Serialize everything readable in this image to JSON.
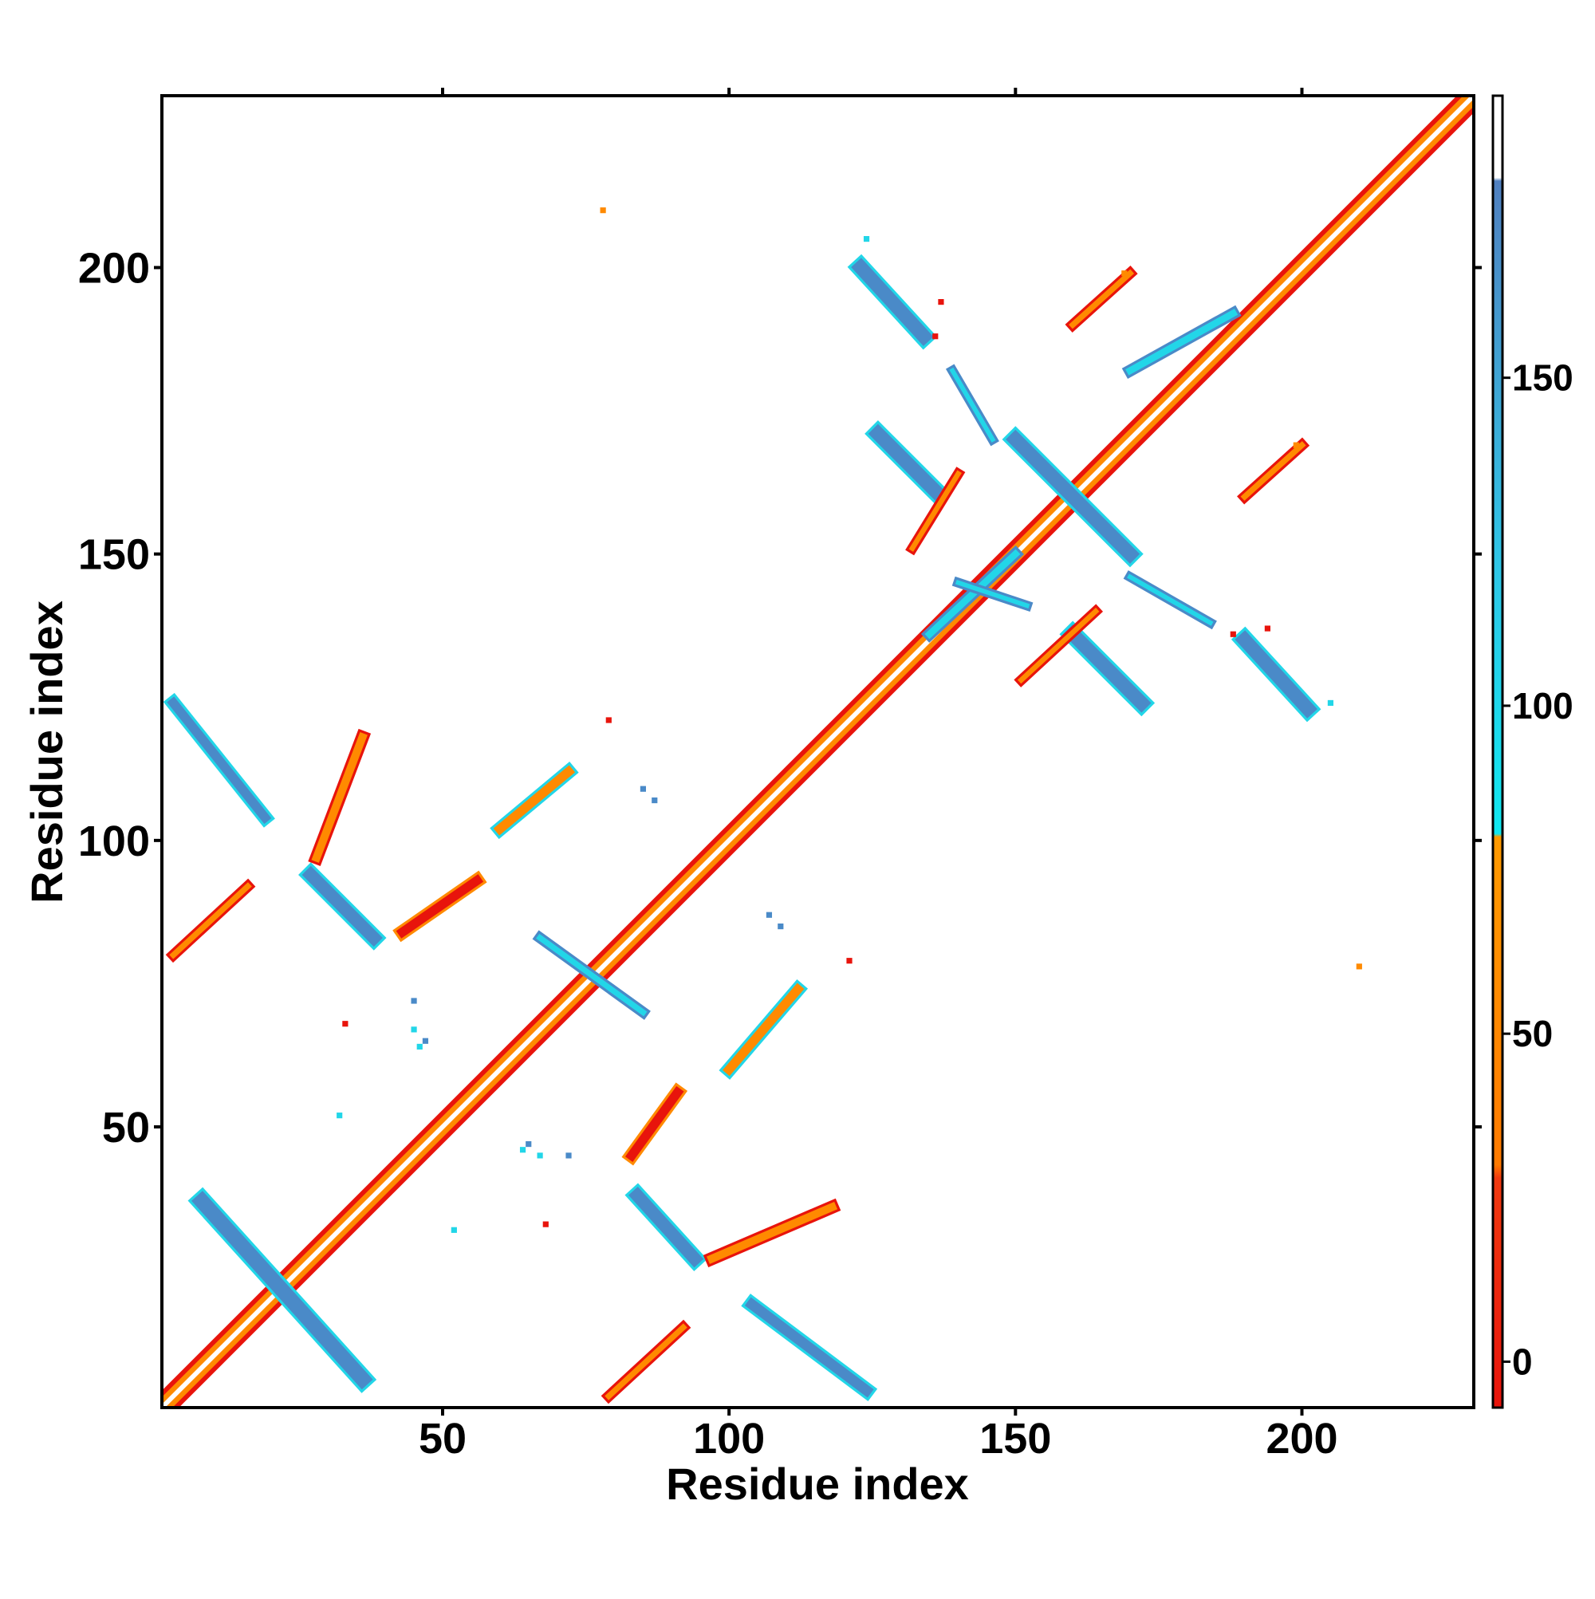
{
  "chart_data": {
    "type": "heatmap",
    "title": "",
    "xlabel": "Residue index",
    "ylabel": "Residue index",
    "xlim": [
      1,
      230
    ],
    "ylim": [
      1,
      230
    ],
    "x_ticks": [
      50,
      100,
      150,
      200
    ],
    "y_ticks": [
      50,
      100,
      150,
      200
    ],
    "colorbar": {
      "ticks": [
        0,
        50,
        100,
        150
      ],
      "range": [
        -7,
        193
      ],
      "bands": [
        {
          "from": -7,
          "to": 30,
          "color": "#e8140c"
        },
        {
          "from": 30,
          "to": 80,
          "color": "#ff8a00"
        },
        {
          "from": 80,
          "to": 180,
          "color": "#22d6e8"
        },
        {
          "from": 180,
          "to": 193,
          "color": "#ffffff"
        }
      ],
      "gradient_stops": [
        {
          "value": -7,
          "color": "#e8140c"
        },
        {
          "value": 28,
          "color": "#f03a10"
        },
        {
          "value": 30,
          "color": "#ff7a00"
        },
        {
          "value": 80,
          "color": "#ff9a00"
        },
        {
          "value": 80.5,
          "color": "#10e8f0"
        },
        {
          "value": 120,
          "color": "#2ec8e8"
        },
        {
          "value": 180,
          "color": "#5080c0"
        },
        {
          "value": 180.5,
          "color": "#ffffff"
        }
      ]
    },
    "diagonal": {
      "from": 1,
      "to": 230
    },
    "segments": [
      {
        "x1": 8,
        "y1": 37,
        "x2": 36,
        "y2": 6,
        "width": 2.6,
        "color": "#4a8ac8",
        "edge": "#22d6e8"
      },
      {
        "x1": 3,
        "y1": 124,
        "x2": 19,
        "y2": 104,
        "width": 1.6,
        "color": "#4a8ac8",
        "edge": "#22d6e8"
      },
      {
        "x1": 27,
        "y1": 94,
        "x2": 38,
        "y2": 83,
        "width": 2.2,
        "color": "#4a8ac8",
        "edge": "#22d6e8"
      },
      {
        "x1": 84,
        "y1": 38,
        "x2": 94,
        "y2": 27,
        "width": 2.2,
        "color": "#4a8ac8",
        "edge": "#22d6e8"
      },
      {
        "x1": 104,
        "y1": 19,
        "x2": 124,
        "y2": 4,
        "width": 1.8,
        "color": "#4a8ac8",
        "edge": "#22d6e8"
      },
      {
        "x1": 123,
        "y1": 200,
        "x2": 134,
        "y2": 188,
        "width": 2.4,
        "color": "#4a8ac8",
        "edge": "#22d6e8"
      },
      {
        "x1": 126,
        "y1": 171,
        "x2": 136,
        "y2": 161,
        "width": 2.4,
        "color": "#4a8ac8",
        "edge": "#22d6e8"
      },
      {
        "x1": 150,
        "y1": 170,
        "x2": 170,
        "y2": 150,
        "width": 2.4,
        "color": "#4a8ac8",
        "edge": "#22d6e8"
      },
      {
        "x1": 160,
        "y1": 136,
        "x2": 172,
        "y2": 124,
        "width": 2.4,
        "color": "#4a8ac8",
        "edge": "#22d6e8"
      },
      {
        "x1": 190,
        "y1": 135,
        "x2": 201,
        "y2": 123,
        "width": 2.4,
        "color": "#4a8ac8",
        "edge": "#22d6e8"
      },
      {
        "x1": 28,
        "y1": 97,
        "x2": 36,
        "y2": 118,
        "width": 1.4,
        "color": "#ff8a00",
        "edge": "#e8140c"
      },
      {
        "x1": 43,
        "y1": 84,
        "x2": 56,
        "y2": 93,
        "width": 1.6,
        "color": "#e8140c",
        "edge": "#ff8a00"
      },
      {
        "x1": 83,
        "y1": 45,
        "x2": 91,
        "y2": 56,
        "width": 1.6,
        "color": "#e8140c",
        "edge": "#ff8a00"
      },
      {
        "x1": 97,
        "y1": 27,
        "x2": 118,
        "y2": 36,
        "width": 1.4,
        "color": "#ff8a00",
        "edge": "#e8140c"
      },
      {
        "x1": 60,
        "y1": 102,
        "x2": 72,
        "y2": 112,
        "width": 1.6,
        "color": "#ff8a00",
        "edge": "#22d6e8"
      },
      {
        "x1": 100,
        "y1": 60,
        "x2": 112,
        "y2": 74,
        "width": 1.6,
        "color": "#ff8a00",
        "edge": "#22d6e8"
      },
      {
        "x1": 3,
        "y1": 80,
        "x2": 16,
        "y2": 92,
        "width": 1.0,
        "color": "#ff8a00",
        "edge": "#e8140c"
      },
      {
        "x1": 79,
        "y1": 3,
        "x2": 92,
        "y2": 15,
        "width": 1.0,
        "color": "#ff8a00",
        "edge": "#e8140c"
      },
      {
        "x1": 160,
        "y1": 190,
        "x2": 170,
        "y2": 199,
        "width": 1.0,
        "color": "#ff8a00",
        "edge": "#e8140c"
      },
      {
        "x1": 190,
        "y1": 160,
        "x2": 200,
        "y2": 169,
        "width": 1.0,
        "color": "#ff8a00",
        "edge": "#e8140c"
      },
      {
        "x1": 132,
        "y1": 151,
        "x2": 140,
        "y2": 164,
        "width": 0.9,
        "color": "#ff8a00",
        "edge": "#e8140c"
      },
      {
        "x1": 151,
        "y1": 128,
        "x2": 164,
        "y2": 140,
        "width": 0.9,
        "color": "#ff8a00",
        "edge": "#e8140c"
      },
      {
        "x1": 139,
        "y1": 182,
        "x2": 146,
        "y2": 170,
        "width": 0.8,
        "color": "#22d6e8",
        "edge": "#4a8ac8"
      },
      {
        "x1": 170,
        "y1": 146,
        "x2": 184,
        "y2": 138,
        "width": 0.8,
        "color": "#22d6e8",
        "edge": "#4a8ac8"
      },
      {
        "x1": 170,
        "y1": 182,
        "x2": 188,
        "y2": 192,
        "width": 1.2,
        "color": "#22d6e8",
        "edge": "#4a8ac8"
      },
      {
        "x1": 135,
        "y1": 136,
        "x2": 150,
        "y2": 150,
        "width": 1.2,
        "color": "#22d6e8",
        "edge": "#4a8ac8"
      },
      {
        "x1": 67,
        "y1": 83,
        "x2": 85,
        "y2": 70,
        "width": 1.0,
        "color": "#22d6e8",
        "edge": "#4a8ac8"
      },
      {
        "x1": 140,
        "y1": 145,
        "x2": 152,
        "y2": 141,
        "width": 0.8,
        "color": "#22d6e8",
        "edge": "#4a8ac8"
      }
    ],
    "points": [
      {
        "x": 78,
        "y": 210,
        "color": "#ff8a00"
      },
      {
        "x": 210,
        "y": 78,
        "color": "#ff8a00"
      },
      {
        "x": 79,
        "y": 121,
        "color": "#e8140c"
      },
      {
        "x": 121,
        "y": 79,
        "color": "#e8140c"
      },
      {
        "x": 33,
        "y": 68,
        "color": "#e8140c"
      },
      {
        "x": 68,
        "y": 33,
        "color": "#e8140c"
      },
      {
        "x": 124,
        "y": 205,
        "color": "#22d6e8"
      },
      {
        "x": 205,
        "y": 124,
        "color": "#22d6e8"
      },
      {
        "x": 85,
        "y": 109,
        "color": "#4a8ac8"
      },
      {
        "x": 87,
        "y": 107,
        "color": "#4a8ac8"
      },
      {
        "x": 109,
        "y": 85,
        "color": "#4a8ac8"
      },
      {
        "x": 107,
        "y": 87,
        "color": "#4a8ac8"
      },
      {
        "x": 45,
        "y": 72,
        "color": "#4a8ac8"
      },
      {
        "x": 47,
        "y": 65,
        "color": "#4a8ac8"
      },
      {
        "x": 72,
        "y": 45,
        "color": "#4a8ac8"
      },
      {
        "x": 65,
        "y": 47,
        "color": "#4a8ac8"
      },
      {
        "x": 64,
        "y": 46,
        "color": "#22d6e8"
      },
      {
        "x": 67,
        "y": 45,
        "color": "#22d6e8"
      },
      {
        "x": 46,
        "y": 64,
        "color": "#22d6e8"
      },
      {
        "x": 45,
        "y": 67,
        "color": "#22d6e8"
      },
      {
        "x": 136,
        "y": 188,
        "color": "#e8140c"
      },
      {
        "x": 188,
        "y": 136,
        "color": "#e8140c"
      },
      {
        "x": 194,
        "y": 137,
        "color": "#e8140c"
      },
      {
        "x": 137,
        "y": 194,
        "color": "#e8140c"
      },
      {
        "x": 32,
        "y": 52,
        "color": "#22d6e8"
      },
      {
        "x": 52,
        "y": 32,
        "color": "#22d6e8"
      },
      {
        "x": 169,
        "y": 199,
        "color": "#ff8a00"
      },
      {
        "x": 199,
        "y": 169,
        "color": "#ff8a00"
      }
    ]
  }
}
